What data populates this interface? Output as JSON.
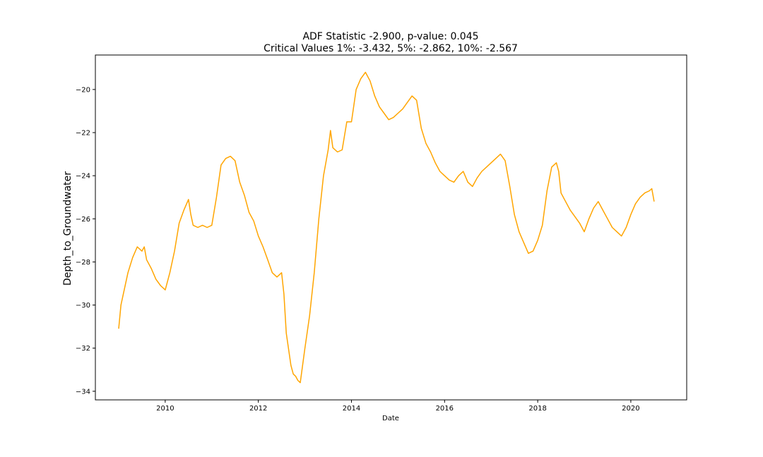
{
  "chart_data": {
    "type": "line",
    "title_lines": [
      "ADF Statistic -2.900, p-value: 0.045",
      "Critical Values 1%: -3.432, 5%: -2.862, 10%: -2.567"
    ],
    "xlabel": "Date",
    "ylabel": "Depth_to_Groundwater",
    "x_ticks": [
      "2010",
      "2012",
      "2014",
      "2016",
      "2018",
      "2020"
    ],
    "y_ticks": [
      -20,
      -22,
      -24,
      -26,
      -28,
      -30,
      -32,
      -34
    ],
    "xlim": [
      2008.5,
      2021.2
    ],
    "ylim": [
      -34.4,
      -18.4
    ],
    "grid": false,
    "color": "#FFA500",
    "series": [
      {
        "x": [
          2009.0,
          2009.05,
          2009.1,
          2009.2,
          2009.3,
          2009.4,
          2009.5,
          2009.55,
          2009.6,
          2009.7,
          2009.8,
          2009.9,
          2010.0,
          2010.1,
          2010.2,
          2010.3,
          2010.4,
          2010.5,
          2010.55,
          2010.6,
          2010.7,
          2010.8,
          2010.9,
          2011.0,
          2011.1,
          2011.2,
          2011.3,
          2011.4,
          2011.5,
          2011.6,
          2011.7,
          2011.8,
          2011.9,
          2012.0,
          2012.1,
          2012.2,
          2012.3,
          2012.4,
          2012.5,
          2012.55,
          2012.6,
          2012.7,
          2012.75,
          2012.8,
          2012.85,
          2012.9,
          2013.0,
          2013.1,
          2013.2,
          2013.3,
          2013.4,
          2013.5,
          2013.55,
          2013.6,
          2013.7,
          2013.8,
          2013.9,
          2014.0,
          2014.1,
          2014.2,
          2014.3,
          2014.4,
          2014.5,
          2014.6,
          2014.7,
          2014.8,
          2014.9,
          2015.0,
          2015.1,
          2015.2,
          2015.3,
          2015.4,
          2015.5,
          2015.6,
          2015.7,
          2015.8,
          2015.9,
          2016.0,
          2016.1,
          2016.2,
          2016.3,
          2016.4,
          2016.5,
          2016.6,
          2016.7,
          2016.8,
          2016.9,
          2017.0,
          2017.1,
          2017.2,
          2017.3,
          2017.4,
          2017.5,
          2017.6,
          2017.7,
          2017.8,
          2017.9,
          2018.0,
          2018.1,
          2018.2,
          2018.3,
          2018.4,
          2018.45,
          2018.5,
          2018.6,
          2018.7,
          2018.8,
          2018.9,
          2019.0,
          2019.1,
          2019.2,
          2019.3,
          2019.4,
          2019.5,
          2019.6,
          2019.7,
          2019.8,
          2019.9,
          2020.0,
          2020.1,
          2020.2,
          2020.3,
          2020.4,
          2020.45,
          2020.5
        ],
        "y": [
          -31.1,
          -30.0,
          -29.5,
          -28.5,
          -27.8,
          -27.3,
          -27.5,
          -27.3,
          -27.9,
          -28.3,
          -28.8,
          -29.1,
          -29.3,
          -28.5,
          -27.5,
          -26.2,
          -25.6,
          -25.1,
          -25.8,
          -26.3,
          -26.4,
          -26.3,
          -26.4,
          -26.3,
          -25.0,
          -23.5,
          -23.2,
          -23.1,
          -23.3,
          -24.3,
          -24.9,
          -25.7,
          -26.1,
          -26.8,
          -27.3,
          -27.9,
          -28.5,
          -28.7,
          -28.5,
          -29.5,
          -31.3,
          -32.8,
          -33.2,
          -33.3,
          -33.5,
          -33.6,
          -32.0,
          -30.5,
          -28.5,
          -26.0,
          -24.0,
          -22.8,
          -21.9,
          -22.7,
          -22.9,
          -22.8,
          -21.5,
          -21.5,
          -20.0,
          -19.5,
          -19.2,
          -19.6,
          -20.3,
          -20.8,
          -21.1,
          -21.4,
          -21.3,
          -21.1,
          -20.9,
          -20.6,
          -20.3,
          -20.5,
          -21.8,
          -22.5,
          -22.9,
          -23.4,
          -23.8,
          -24.0,
          -24.2,
          -24.3,
          -24.0,
          -23.8,
          -24.3,
          -24.5,
          -24.1,
          -23.8,
          -23.6,
          -23.4,
          -23.2,
          -23.0,
          -23.3,
          -24.5,
          -25.8,
          -26.6,
          -27.1,
          -27.6,
          -27.5,
          -27.0,
          -26.3,
          -24.7,
          -23.6,
          -23.4,
          -23.8,
          -24.8,
          -25.2,
          -25.6,
          -25.9,
          -26.2,
          -26.6,
          -26.0,
          -25.5,
          -25.2,
          -25.6,
          -26.0,
          -26.4,
          -26.6,
          -26.8,
          -26.4,
          -25.8,
          -25.3,
          -25.0,
          -24.8,
          -24.7,
          -24.6,
          -25.2
        ]
      }
    ]
  }
}
